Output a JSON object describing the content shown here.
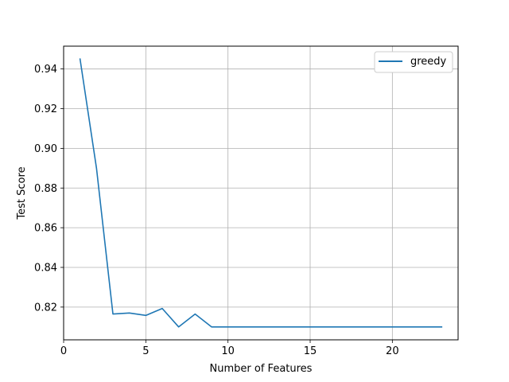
{
  "chart_data": {
    "type": "line",
    "title": "",
    "xlabel": "Number of Features",
    "ylabel": "Test Score",
    "xlim": [
      0,
      24
    ],
    "ylim": [
      0.8035,
      0.9515
    ],
    "xticks": [
      0,
      5,
      10,
      15,
      20
    ],
    "xtick_labels": [
      "0",
      "5",
      "10",
      "15",
      "20"
    ],
    "yticks": [
      0.82,
      0.84,
      0.86,
      0.88,
      0.9,
      0.92,
      0.94
    ],
    "ytick_labels": [
      "0.82",
      "0.84",
      "0.86",
      "0.88",
      "0.90",
      "0.92",
      "0.94"
    ],
    "grid": true,
    "legend": {
      "placement": "upper-right"
    },
    "series": [
      {
        "name": "greedy",
        "color": "#1f77b4",
        "x": [
          1,
          2,
          3,
          4,
          5,
          6,
          7,
          8,
          9,
          10,
          11,
          12,
          13,
          14,
          15,
          16,
          17,
          18,
          19,
          20,
          21,
          22,
          23
        ],
        "y": [
          0.945,
          0.89,
          0.8165,
          0.817,
          0.8158,
          0.8193,
          0.81,
          0.8165,
          0.81,
          0.81,
          0.81,
          0.81,
          0.81,
          0.81,
          0.81,
          0.81,
          0.81,
          0.81,
          0.81,
          0.81,
          0.81,
          0.81,
          0.81
        ]
      }
    ]
  }
}
